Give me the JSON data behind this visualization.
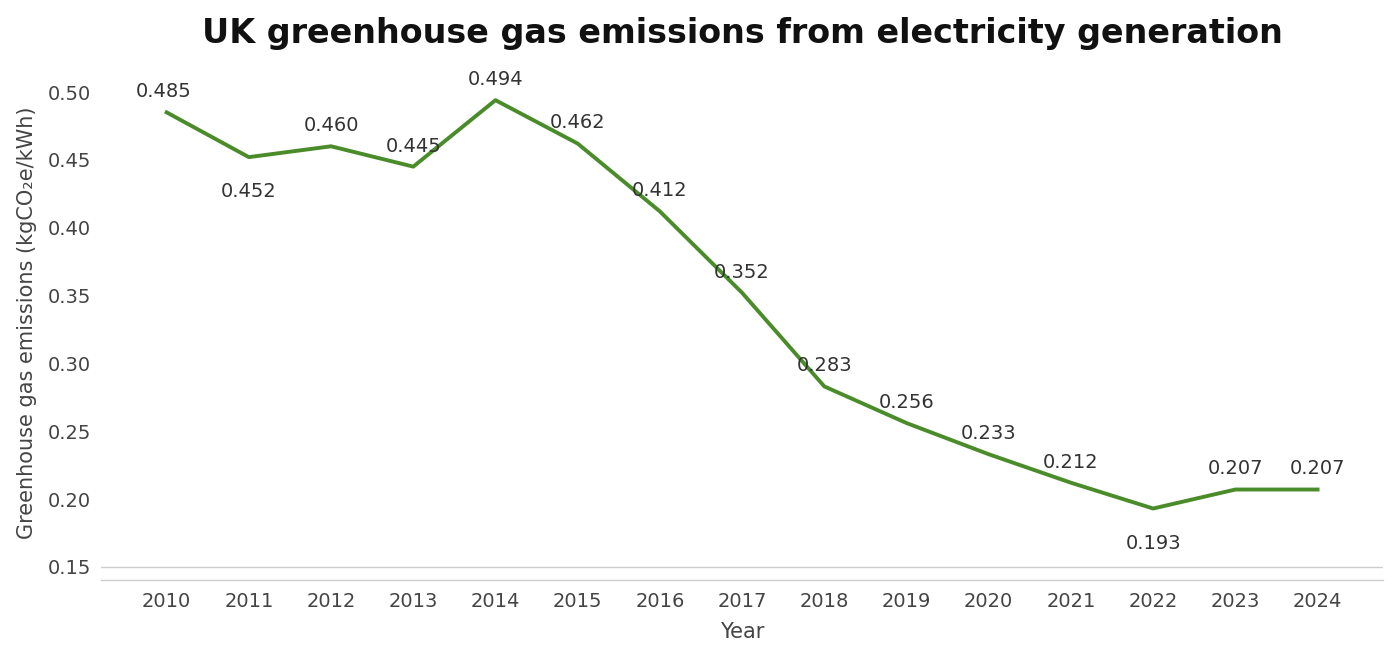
{
  "title": "UK greenhouse gas emissions from electricity generation",
  "xlabel": "Year",
  "ylabel": "Greenhouse gas emissions (kgCO₂e/kWh)",
  "years": [
    2010,
    2011,
    2012,
    2013,
    2014,
    2015,
    2016,
    2017,
    2018,
    2019,
    2020,
    2021,
    2022,
    2023,
    2024
  ],
  "values": [
    0.485,
    0.452,
    0.46,
    0.445,
    0.494,
    0.462,
    0.412,
    0.352,
    0.283,
    0.256,
    0.233,
    0.212,
    0.193,
    0.207,
    0.207
  ],
  "line_color": "#4a8c2a",
  "line_width": 2.8,
  "ylim": [
    0.14,
    0.52
  ],
  "yticks": [
    0.15,
    0.2,
    0.25,
    0.3,
    0.35,
    0.4,
    0.45,
    0.5
  ],
  "background_color": "#ffffff",
  "title_fontsize": 24,
  "label_fontsize": 15,
  "tick_fontsize": 14,
  "annotation_fontsize": 14,
  "annotation_color": "#333333",
  "tick_color": "#444444",
  "spine_color": "#cccccc"
}
